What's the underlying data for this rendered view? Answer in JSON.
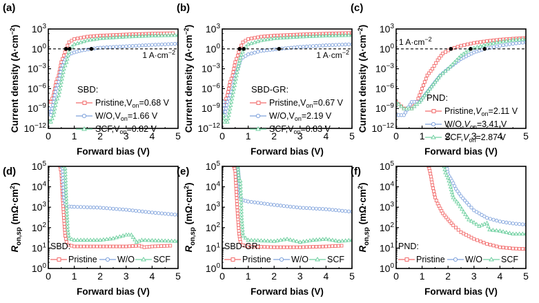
{
  "colors": {
    "Pristine": "#f26b6b",
    "W/O": "#7fa2dc",
    "SCF": "#6fd0a0"
  },
  "chart_data": [
    {
      "panel": "(a)",
      "type": "line",
      "yscale": "log",
      "xlabel": "Forward bias (V)",
      "ylabel": "Current density (A·cm⁻²)",
      "xlim": [
        0,
        5
      ],
      "ylim": [
        1e-12,
        1000.0
      ],
      "xticks": [
        "0",
        "1",
        "2",
        "3",
        "4",
        "5"
      ],
      "yticks": [
        "10⁻¹²",
        "10⁻⁹",
        "10⁻⁶",
        "10⁻³",
        "10⁰",
        "10³"
      ],
      "ytick_exp": [
        -12,
        -9,
        -6,
        -3,
        0,
        3
      ],
      "legend_title": "SBD:",
      "legend": "middle-right",
      "reference_line": {
        "y": 1,
        "label": "1 A·cm⁻²",
        "label_pos": "right"
      },
      "series": [
        {
          "name": "Pristine",
          "label": "Pristine,V_on=0.68 V",
          "von": 0.68,
          "marker": "square",
          "x": [
            0.05,
            0.1,
            0.2,
            0.3,
            0.4,
            0.5,
            0.6,
            0.68,
            0.8,
            1,
            1.5,
            2,
            3,
            4,
            4.8
          ],
          "y": [
            1e-08,
            1e-08,
            1e-07,
            1e-05,
            0.0001,
            0.01,
            0.1,
            1,
            10,
            30,
            70,
            100,
            150,
            200,
            230
          ]
        },
        {
          "name": "W/O",
          "label": "W/O,V_on=1.66 V",
          "von": 1.66,
          "marker": "circle",
          "x": [
            0.05,
            0.1,
            0.2,
            0.3,
            0.4,
            0.5,
            0.6,
            0.7,
            0.8,
            1,
            1.3,
            1.66,
            2,
            3,
            4,
            5
          ],
          "y": [
            1e-09,
            1e-10,
            1e-08,
            1e-06,
            1e-05,
            0.001,
            0.01,
            0.05,
            0.15,
            0.3,
            0.6,
            1,
            1.5,
            2.5,
            4,
            6
          ]
        },
        {
          "name": "SCF",
          "label": "SCF,V_on=0.82 V",
          "von": 0.82,
          "marker": "triangle",
          "x": [
            0.05,
            0.1,
            0.2,
            0.3,
            0.4,
            0.5,
            0.6,
            0.7,
            0.82,
            1,
            1.5,
            2,
            3,
            4,
            5
          ],
          "y": [
            1e-11,
            1e-11,
            1e-10,
            1e-08,
            1e-07,
            1e-05,
            0.001,
            0.01,
            1,
            5,
            20,
            40,
            70,
            100,
            120
          ]
        }
      ]
    },
    {
      "panel": "(b)",
      "type": "line",
      "yscale": "log",
      "xlabel": "Forward bias (V)",
      "ylabel": "Current density (A·cm⁻²)",
      "xlim": [
        0,
        5
      ],
      "ylim": [
        1e-12,
        1000.0
      ],
      "xticks": [
        "0",
        "1",
        "2",
        "3",
        "4",
        "5"
      ],
      "yticks": [
        "10⁻¹²",
        "10⁻⁹",
        "10⁻⁶",
        "10⁻³",
        "10⁰",
        "10³"
      ],
      "ytick_exp": [
        -12,
        -9,
        -6,
        -3,
        0,
        3
      ],
      "legend_title": "SBD-GR:",
      "legend": "middle-right",
      "reference_line": {
        "y": 1,
        "label": "1 A·cm⁻²",
        "label_pos": "right"
      },
      "series": [
        {
          "name": "Pristine",
          "label": "Pristine,V_on=0.67 V",
          "von": 0.67,
          "marker": "square",
          "x": [
            0.05,
            0.1,
            0.2,
            0.3,
            0.4,
            0.5,
            0.6,
            0.67,
            0.8,
            1,
            1.5,
            2,
            3,
            4,
            5
          ],
          "y": [
            1e-09,
            1e-08,
            1e-07,
            1e-05,
            0.0001,
            0.01,
            0.1,
            1,
            10,
            30,
            70,
            100,
            150,
            200,
            250
          ]
        },
        {
          "name": "W/O",
          "label": "W/O,V_on=2.19 V",
          "von": 2.19,
          "marker": "circle",
          "x": [
            0.05,
            0.1,
            0.2,
            0.3,
            0.4,
            0.5,
            0.6,
            0.7,
            0.8,
            1,
            1.5,
            2.19,
            3,
            4,
            5
          ],
          "y": [
            1e-08,
            1e-10,
            1e-08,
            1e-07,
            1e-06,
            0.0001,
            0.001,
            0.02,
            0.05,
            0.15,
            0.5,
            1,
            2,
            3.5,
            5
          ]
        },
        {
          "name": "SCF",
          "label": "SCF,V_on=0.83 V",
          "von": 0.83,
          "marker": "triangle",
          "x": [
            0.05,
            0.1,
            0.2,
            0.3,
            0.4,
            0.5,
            0.6,
            0.7,
            0.83,
            1,
            1.5,
            2,
            3,
            4,
            5
          ],
          "y": [
            1e-10,
            1e-11,
            1e-11,
            1e-09,
            1e-07,
            1e-05,
            0.001,
            0.05,
            1,
            5,
            20,
            40,
            70,
            100,
            120
          ]
        }
      ]
    },
    {
      "panel": "(c)",
      "type": "line",
      "yscale": "log",
      "xlabel": "Forward bias (V)",
      "ylabel": "Current density (A·cm⁻²)",
      "xlim": [
        0,
        5
      ],
      "ylim": [
        1e-12,
        1000.0
      ],
      "xticks": [
        "0",
        "1",
        "2",
        "3",
        "4",
        "5"
      ],
      "yticks": [
        "10⁻¹²",
        "10⁻⁹",
        "10⁻⁶",
        "10⁻³",
        "10⁰",
        "10³"
      ],
      "ytick_exp": [
        -12,
        -9,
        -6,
        -3,
        0,
        3
      ],
      "legend_title": "PND:",
      "legend": "lower-right",
      "reference_line": {
        "y": 1,
        "label": "1 A·cm⁻²",
        "label_pos": "left"
      },
      "series": [
        {
          "name": "Pristine",
          "label": "Pristine,V_on=2.11 V",
          "von": 2.11,
          "marker": "square",
          "x": [
            0,
            0.3,
            0.6,
            0.8,
            0.9,
            1,
            1.1,
            1.2,
            1.4,
            1.6,
            1.8,
            2.11,
            2.5,
            3,
            3.5,
            4,
            4.5,
            5
          ],
          "y": [
            1e-08,
            1e-09,
            1e-09,
            1e-08,
            1e-07,
            1e-06,
            1e-05,
            0.0001,
            0.001,
            0.02,
            0.2,
            1,
            3,
            8,
            15,
            25,
            35,
            45
          ]
        },
        {
          "name": "W/O",
          "label": "W/O,V_on=3.41 V",
          "von": 3.41,
          "marker": "circle",
          "x": [
            0,
            0.3,
            0.6,
            0.9,
            1.1,
            1.3,
            1.5,
            1.7,
            2,
            2.5,
            3,
            3.41,
            4,
            4.5,
            5
          ],
          "y": [
            1e-10,
            1e-10,
            1e-08,
            1e-08,
            1e-07,
            1e-06,
            1e-05,
            0.0001,
            0.001,
            0.03,
            0.3,
            1,
            3,
            6,
            10
          ]
        },
        {
          "name": "SCF",
          "label": "SCF,V_on=2.87 V",
          "von": 2.87,
          "marker": "triangle",
          "x": [
            0,
            0.3,
            0.6,
            0.9,
            1.1,
            1.3,
            1.5,
            1.7,
            2,
            2.5,
            2.87,
            3.5,
            4,
            4.5,
            5
          ],
          "y": [
            1e-08,
            1e-09,
            1e-09,
            1e-08,
            1e-07,
            1e-06,
            1e-05,
            0.0001,
            0.001,
            0.1,
            1,
            5,
            12,
            22,
            30
          ]
        }
      ]
    },
    {
      "panel": "(d)",
      "type": "line",
      "yscale": "log",
      "xlabel": "Forward bias (V)",
      "ylabel": "R_on,sp (mΩ·cm²)",
      "xlim": [
        0,
        5
      ],
      "ylim": [
        1,
        100000.0
      ],
      "xticks": [
        "0",
        "1",
        "2",
        "3",
        "4",
        "5"
      ],
      "yticks": [
        "10⁰",
        "10¹",
        "10²",
        "10³",
        "10⁴",
        "10⁵"
      ],
      "ytick_exp": [
        0,
        1,
        2,
        3,
        4,
        5
      ],
      "legend_title": "SBD:",
      "legend": "bottom-horizontal",
      "series": [
        {
          "name": "Pristine",
          "label": "Pristine",
          "marker": "square",
          "x": [
            0.45,
            0.5,
            0.55,
            0.6,
            0.65,
            0.7,
            0.8,
            1,
            2,
            3,
            3.5,
            3.7,
            4,
            4.7
          ],
          "y": [
            100000.0,
            50000.0,
            3000.0,
            300,
            40,
            20,
            14,
            12,
            12,
            12,
            13,
            11,
            12,
            13
          ]
        },
        {
          "name": "W/O",
          "label": "W/O",
          "marker": "circle",
          "x": [
            0.5,
            0.55,
            0.6,
            0.65,
            0.7,
            1,
            2,
            3,
            4,
            5
          ],
          "y": [
            100000.0,
            80000.0,
            3000.0,
            1500,
            1100,
            1050,
            950,
            750,
            550,
            420
          ]
        },
        {
          "name": "SCF",
          "label": "SCF",
          "marker": "triangle",
          "x": [
            0.6,
            0.65,
            0.7,
            0.75,
            0.8,
            1,
            2,
            2.5,
            3,
            3.2,
            3.4,
            3.6,
            4,
            5
          ],
          "y": [
            100000.0,
            80000.0,
            1300,
            80,
            30,
            25,
            25,
            30,
            45,
            45,
            20,
            25,
            24,
            22
          ]
        }
      ]
    },
    {
      "panel": "(e)",
      "type": "line",
      "yscale": "log",
      "xlabel": "Forward bias (V)",
      "ylabel": "R_on,sp (mΩ·cm²)",
      "xlim": [
        0,
        5
      ],
      "ylim": [
        1,
        100000.0
      ],
      "xticks": [
        "0",
        "1",
        "2",
        "3",
        "4",
        "5"
      ],
      "yticks": [
        "10⁰",
        "10¹",
        "10²",
        "10³",
        "10⁴",
        "10⁵"
      ],
      "ytick_exp": [
        0,
        1,
        2,
        3,
        4,
        5
      ],
      "legend_title": "SBD-GR:",
      "legend": "bottom-horizontal",
      "series": [
        {
          "name": "Pristine",
          "label": "Pristine",
          "marker": "square",
          "x": [
            0.45,
            0.5,
            0.55,
            0.6,
            0.65,
            0.7,
            0.8,
            1,
            2,
            3,
            4,
            4.6
          ],
          "y": [
            100000.0,
            60000.0,
            4000.0,
            350,
            50,
            20,
            14,
            12,
            11,
            11,
            12,
            13
          ]
        },
        {
          "name": "W/O",
          "label": "W/O",
          "marker": "circle",
          "x": [
            0.6,
            0.65,
            0.7,
            0.8,
            1,
            2,
            3,
            4,
            5
          ],
          "y": [
            100000.0,
            20000.0,
            3000,
            2200,
            1900,
            1300,
            950,
            800,
            600
          ]
        },
        {
          "name": "SCF",
          "label": "SCF",
          "marker": "triangle",
          "x": [
            0.6,
            0.65,
            0.7,
            0.75,
            0.8,
            1,
            2,
            2.5,
            3,
            3.5,
            4,
            4.5,
            5
          ],
          "y": [
            100000.0,
            20000.0,
            20000.0,
            300,
            40,
            25,
            22,
            28,
            20,
            25,
            28,
            22,
            25
          ]
        }
      ]
    },
    {
      "panel": "(f)",
      "type": "line",
      "yscale": "log",
      "xlabel": "Forward bias (V)",
      "ylabel": "R_on,sp (mΩ·cm²)",
      "xlim": [
        0,
        5
      ],
      "ylim": [
        1,
        100000.0
      ],
      "xticks": [
        "0",
        "1",
        "2",
        "3",
        "4",
        "5"
      ],
      "yticks": [
        "10⁰",
        "10¹",
        "10²",
        "10³",
        "10⁴",
        "10⁵"
      ],
      "ytick_exp": [
        0,
        1,
        2,
        3,
        4,
        5
      ],
      "legend_title": "PND:",
      "legend": "bottom-horizontal",
      "series": [
        {
          "name": "Pristine",
          "label": "Pristine",
          "marker": "square",
          "x": [
            1.25,
            1.3,
            1.4,
            1.5,
            1.6,
            1.8,
            2,
            2.2,
            2.5,
            3,
            3.5,
            4,
            4.5,
            5
          ],
          "y": [
            100000.0,
            60000.0,
            12000.0,
            3000,
            1500,
            500,
            250,
            130,
            60,
            28,
            16,
            11,
            9.5,
            9
          ]
        },
        {
          "name": "W/O",
          "label": "W/O",
          "marker": "circle",
          "x": [
            1.95,
            2,
            2.1,
            2.2,
            2.3,
            2.5,
            2.8,
            3,
            3.5,
            4,
            4.5,
            5
          ],
          "y": [
            100000.0,
            40000.0,
            25000.0,
            15000.0,
            8000.0,
            3500,
            1300,
            700,
            300,
            200,
            160,
            140
          ]
        },
        {
          "name": "SCF",
          "label": "SCF",
          "marker": "triangle",
          "x": [
            1.85,
            1.9,
            2,
            2.1,
            2.2,
            2.4,
            2.6,
            2.8,
            3,
            3.2,
            3.5,
            3.6,
            4,
            4.5,
            5
          ],
          "y": [
            100000.0,
            50000.0,
            28000.0,
            10000.0,
            3000,
            1500,
            600,
            250,
            180,
            120,
            170,
            80,
            70,
            50,
            50
          ]
        }
      ]
    }
  ]
}
